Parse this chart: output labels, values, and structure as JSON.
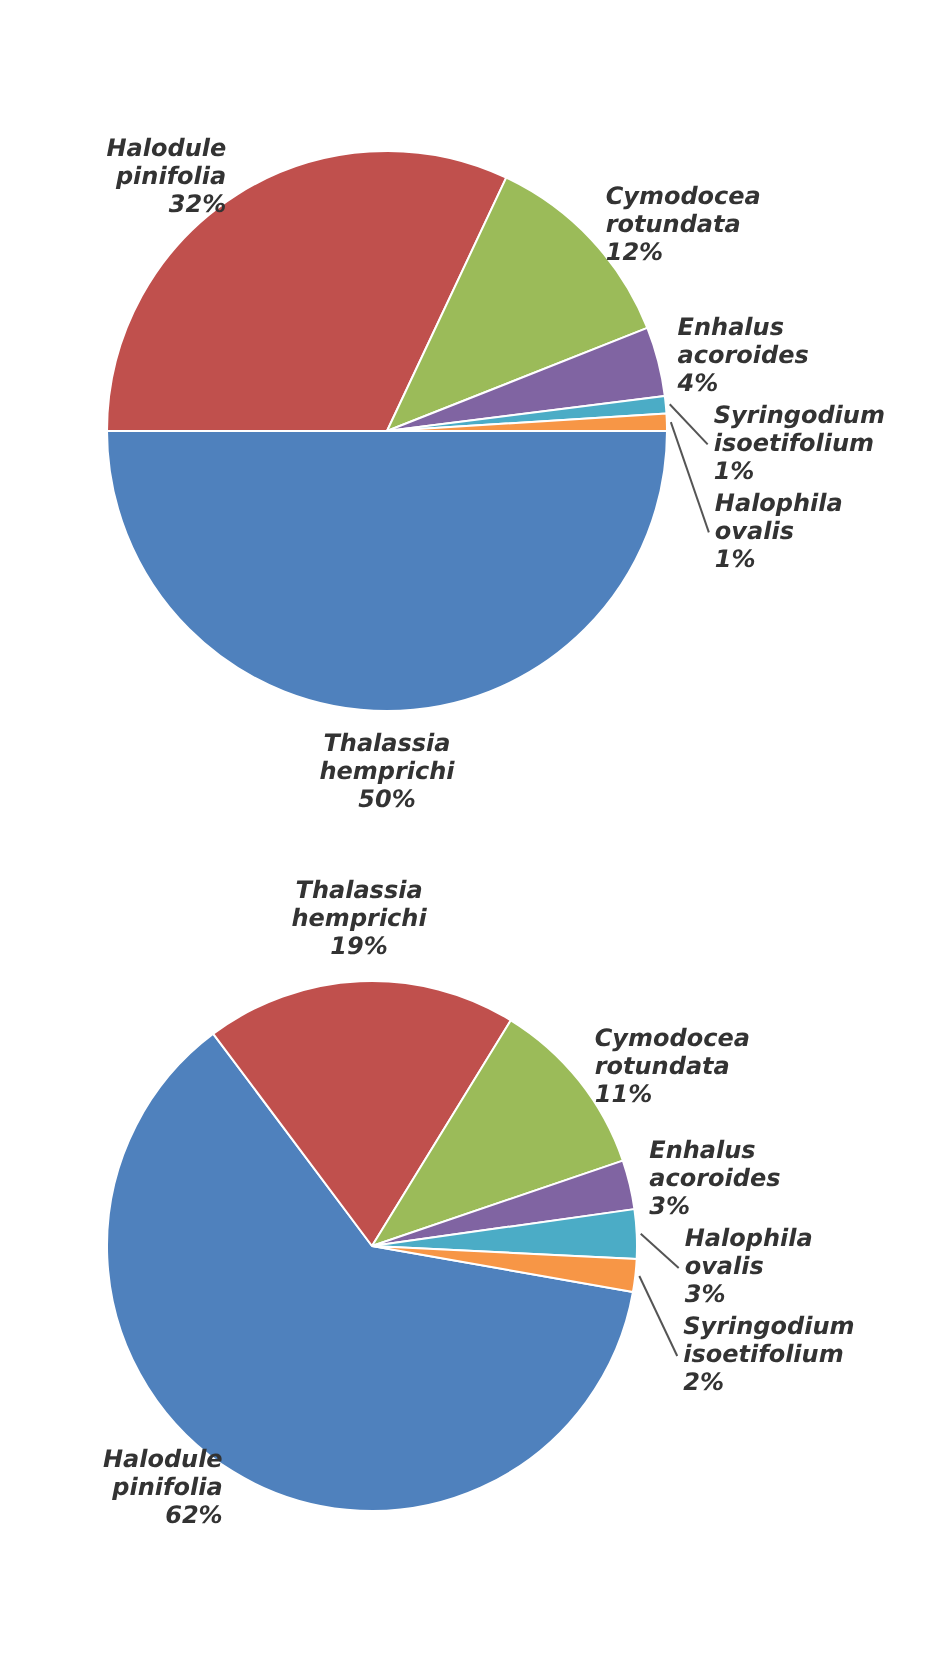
{
  "chart_data": [
    {
      "type": "pie",
      "categories": [
        "Thalassia hemprichi",
        "Halodule pinifolia",
        "Cymodocea rotundata",
        "Enhalus acoroides",
        "Syringodium isoetifolium",
        "Halophila ovalis"
      ],
      "values": [
        50,
        32,
        12,
        4,
        1,
        1
      ],
      "value_labels": [
        "50%",
        "32%",
        "12%",
        "4%",
        "1%",
        "1%"
      ],
      "colors": [
        "#4f81bd",
        "#c0504d",
        "#9bbb59",
        "#8064a2",
        "#4bacc6",
        "#f79646"
      ],
      "legend": false
    },
    {
      "type": "pie",
      "categories": [
        "Halodule pinifolia",
        "Thalassia hemprichi",
        "Cymodocea rotundata",
        "Enhalus acoroides",
        "Halophila ovalis",
        "Syringodium isoetifolium"
      ],
      "values": [
        62,
        19,
        11,
        3,
        3,
        2
      ],
      "value_labels": [
        "62%",
        "19%",
        "11%",
        "3%",
        "3%",
        "2%"
      ],
      "colors": [
        "#4f81bd",
        "#c0504d",
        "#9bbb59",
        "#8064a2",
        "#4bacc6",
        "#f79646"
      ],
      "legend": false
    }
  ]
}
